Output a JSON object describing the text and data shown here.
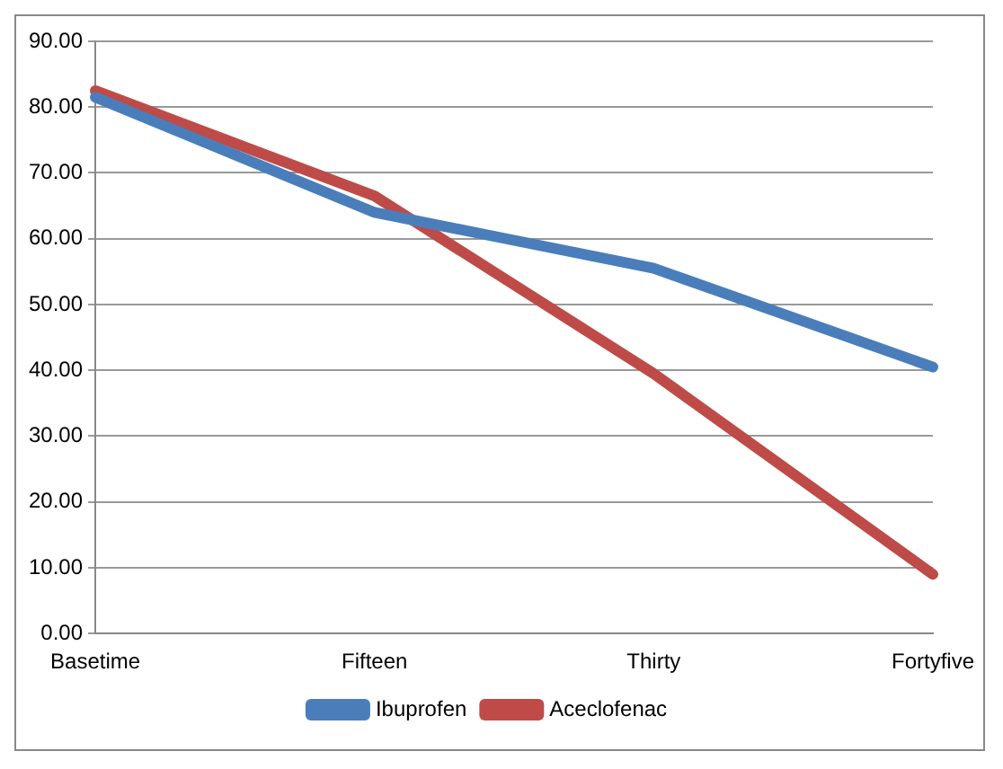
{
  "chart_data": {
    "type": "line",
    "categories": [
      "Basetime",
      "Fifteen",
      "Thirty",
      "Fortyfive"
    ],
    "series": [
      {
        "name": "Ibuprofen",
        "color": "#4a7ebb",
        "values": [
          81.5,
          64,
          55.5,
          40.5
        ]
      },
      {
        "name": "Aceclofenac",
        "color": "#be4b48",
        "values": [
          82.5,
          66.5,
          39.5,
          9
        ]
      }
    ],
    "ylim": [
      0,
      90
    ],
    "yticks": [
      {
        "value": 0,
        "label": "0.00"
      },
      {
        "value": 10,
        "label": "10.00"
      },
      {
        "value": 20,
        "label": "20.00"
      },
      {
        "value": 30,
        "label": "30.00"
      },
      {
        "value": 40,
        "label": "40.00"
      },
      {
        "value": 50,
        "label": "50.00"
      },
      {
        "value": 60,
        "label": "60.00"
      },
      {
        "value": 70,
        "label": "70.00"
      },
      {
        "value": 80,
        "label": "80.00"
      },
      {
        "value": 90,
        "label": "90.00"
      }
    ],
    "grid": "y",
    "legend": "bottom",
    "marker": "none",
    "line_style": "solid"
  }
}
